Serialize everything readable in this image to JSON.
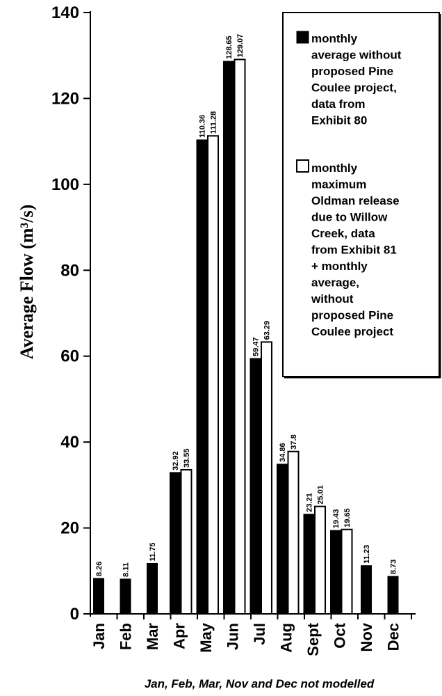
{
  "chart_data": {
    "type": "bar",
    "title": "",
    "xlabel": "",
    "ylabel": "Average Flow (m³/s)",
    "ylim": [
      0,
      140
    ],
    "yticks": [
      "0",
      "20",
      "40",
      "60",
      "80",
      "100",
      "120",
      "140"
    ],
    "categories": [
      "Jan",
      "Feb",
      "Mar",
      "Apr",
      "May",
      "Jun",
      "Jul",
      "Aug",
      "Sept",
      "Oct",
      "Nov",
      "Dec"
    ],
    "series": [
      {
        "name": "monthly average without proposed Pine Coulee project, data from Exhibit 80",
        "legend_lines": [
          "monthly",
          "average without",
          "proposed Pine",
          "Coulee project,",
          "data from",
          "Exhibit 80"
        ],
        "color": "#000000",
        "values": [
          8.26,
          8.11,
          11.75,
          32.92,
          110.36,
          128.65,
          59.47,
          34.86,
          23.21,
          19.43,
          11.23,
          8.73
        ],
        "labels": [
          "8.26",
          "8.11",
          "11.75",
          "32.92",
          "110.36",
          "128.65",
          "59.47",
          "34.86",
          "23.21",
          "19.43",
          "11.23",
          "8.73"
        ]
      },
      {
        "name": "monthly maximum Oldman release due to Willow Creek, data from Exhibit 81 + monthly average, without proposed Pine Coulee project",
        "legend_lines": [
          "monthly",
          "maximum",
          "Oldman release",
          "due to Willow",
          "Creek, data",
          "from Exhibit 81",
          " + monthly",
          "average,",
          "without",
          "proposed Pine",
          "Coulee project"
        ],
        "color": "#ffffff",
        "values": [
          null,
          null,
          null,
          33.55,
          111.28,
          129.07,
          63.29,
          37.8,
          25.01,
          19.65,
          null,
          null
        ],
        "labels": [
          "",
          "",
          "",
          "33.55",
          "111.28",
          "129.07",
          "63.29",
          "37.8",
          "25.01",
          "19.65",
          "",
          ""
        ]
      }
    ],
    "legend_position": "top-right",
    "grid": false,
    "note": "Jan, Feb, Mar, Nov and Dec not modelled"
  }
}
